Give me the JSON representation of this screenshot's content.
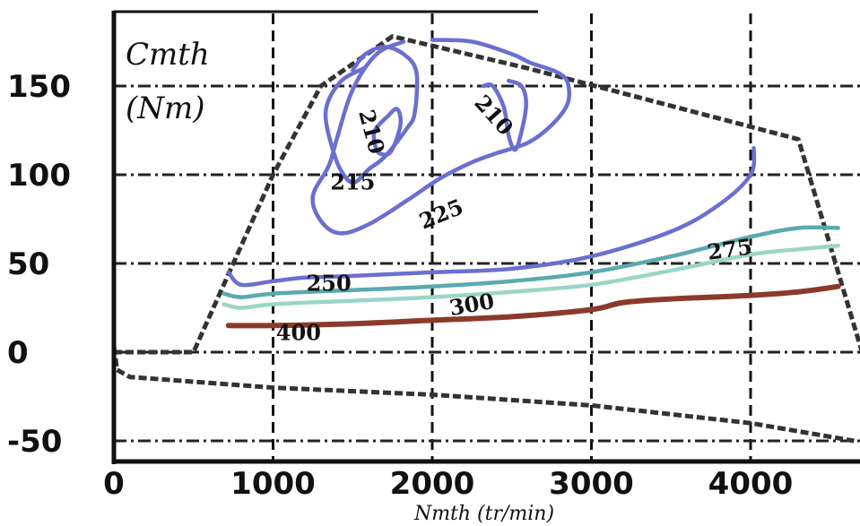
{
  "chart_data": {
    "type": "contour",
    "ylabel": "Cmth\n(Nm)",
    "xlabel": "Nmth (tr/min)",
    "xlim": [
      0,
      4650
    ],
    "ylim": [
      -60,
      185
    ],
    "xticks": [
      0,
      1000,
      2000,
      3000,
      4000
    ],
    "yticks": [
      -50,
      0,
      50,
      100,
      150
    ],
    "grid": true,
    "envelope": {
      "upper": [
        [
          0,
          0
        ],
        [
          500,
          0
        ],
        [
          1000,
          100
        ],
        [
          1300,
          150
        ],
        [
          1750,
          178
        ],
        [
          2600,
          160
        ],
        [
          4300,
          120
        ],
        [
          4700,
          0
        ]
      ],
      "lower": [
        [
          0,
          3
        ],
        [
          20,
          -10
        ],
        [
          100,
          -14
        ],
        [
          1000,
          -20
        ],
        [
          2000,
          -24
        ],
        [
          3000,
          -30
        ],
        [
          4000,
          -40
        ],
        [
          4650,
          -50
        ]
      ]
    },
    "series": [
      {
        "name": "210",
        "color": "#6a6fd0",
        "values": [
          [
            1640,
            125
          ],
          [
            1720,
            133
          ],
          [
            1780,
            137
          ],
          [
            1800,
            128
          ],
          [
            1740,
            113
          ],
          [
            1670,
            112
          ],
          [
            1640,
            117
          ]
        ]
      },
      {
        "name": "210",
        "color": "#6a6fd0",
        "values": [
          [
            2320,
            150
          ],
          [
            2380,
            150
          ],
          [
            2450,
            138
          ],
          [
            2480,
            122
          ],
          [
            2520,
            114
          ],
          [
            2560,
            124
          ],
          [
            2590,
            140
          ],
          [
            2560,
            150
          ],
          [
            2480,
            153
          ]
        ]
      },
      {
        "name": "215",
        "color": "#6a6fd0",
        "values": [
          [
            1570,
            160
          ],
          [
            1420,
            152
          ],
          [
            1330,
            135
          ],
          [
            1390,
            110
          ],
          [
            1460,
            98
          ],
          [
            1520,
            96
          ],
          [
            1600,
            103
          ],
          [
            1700,
            110
          ],
          [
            1840,
            126
          ],
          [
            1890,
            135
          ],
          [
            1900,
            158
          ],
          [
            1820,
            168
          ],
          [
            1700,
            172
          ],
          [
            1580,
            168
          ],
          [
            1500,
            159
          ]
        ]
      },
      {
        "name": "225",
        "color": "#6a6fd0",
        "values": [
          [
            1820,
            175
          ],
          [
            1650,
            168
          ],
          [
            1500,
            148
          ],
          [
            1400,
            120
          ],
          [
            1350,
            105
          ],
          [
            1250,
            88
          ],
          [
            1300,
            74
          ],
          [
            1420,
            67
          ],
          [
            1600,
            72
          ],
          [
            1850,
            86
          ],
          [
            2050,
            98
          ],
          [
            2250,
            107
          ],
          [
            2400,
            112
          ],
          [
            2600,
            118
          ],
          [
            2750,
            128
          ],
          [
            2850,
            140
          ],
          [
            2850,
            152
          ],
          [
            2780,
            158
          ],
          [
            2620,
            163
          ],
          [
            2500,
            168
          ],
          [
            2250,
            175
          ],
          [
            2000,
            176
          ]
        ]
      },
      {
        "name": "250",
        "color": "#6a6fd0",
        "values": [
          [
            720,
            45
          ],
          [
            800,
            38
          ],
          [
            1000,
            40
          ],
          [
            1200,
            42
          ],
          [
            1500,
            43
          ],
          [
            2000,
            45
          ],
          [
            2500,
            47
          ],
          [
            3000,
            54
          ],
          [
            3500,
            68
          ],
          [
            3800,
            83
          ],
          [
            4000,
            100
          ],
          [
            4020,
            115
          ]
        ]
      },
      {
        "name": "275",
        "color": "#5aaab0",
        "values": [
          [
            690,
            33
          ],
          [
            800,
            31
          ],
          [
            1000,
            33
          ],
          [
            1500,
            35
          ],
          [
            2000,
            37
          ],
          [
            2500,
            40
          ],
          [
            3000,
            45
          ],
          [
            3500,
            54
          ],
          [
            4000,
            65
          ],
          [
            4300,
            70
          ],
          [
            4550,
            70
          ]
        ]
      },
      {
        "name": "300",
        "color": "#9ad6c8",
        "values": [
          [
            690,
            27
          ],
          [
            800,
            25
          ],
          [
            1000,
            27
          ],
          [
            1500,
            29
          ],
          [
            2000,
            31
          ],
          [
            2500,
            34
          ],
          [
            3000,
            38
          ],
          [
            3500,
            46
          ],
          [
            4000,
            55
          ],
          [
            4300,
            58
          ],
          [
            4550,
            60
          ]
        ]
      },
      {
        "name": "400",
        "color": "#8b3a2a",
        "values": [
          [
            720,
            15
          ],
          [
            1000,
            15
          ],
          [
            1500,
            16
          ],
          [
            2000,
            18
          ],
          [
            2500,
            20
          ],
          [
            3000,
            24
          ],
          [
            3200,
            28
          ],
          [
            3500,
            30
          ],
          [
            4000,
            32
          ],
          [
            4300,
            34
          ],
          [
            4550,
            37
          ]
        ]
      }
    ]
  }
}
